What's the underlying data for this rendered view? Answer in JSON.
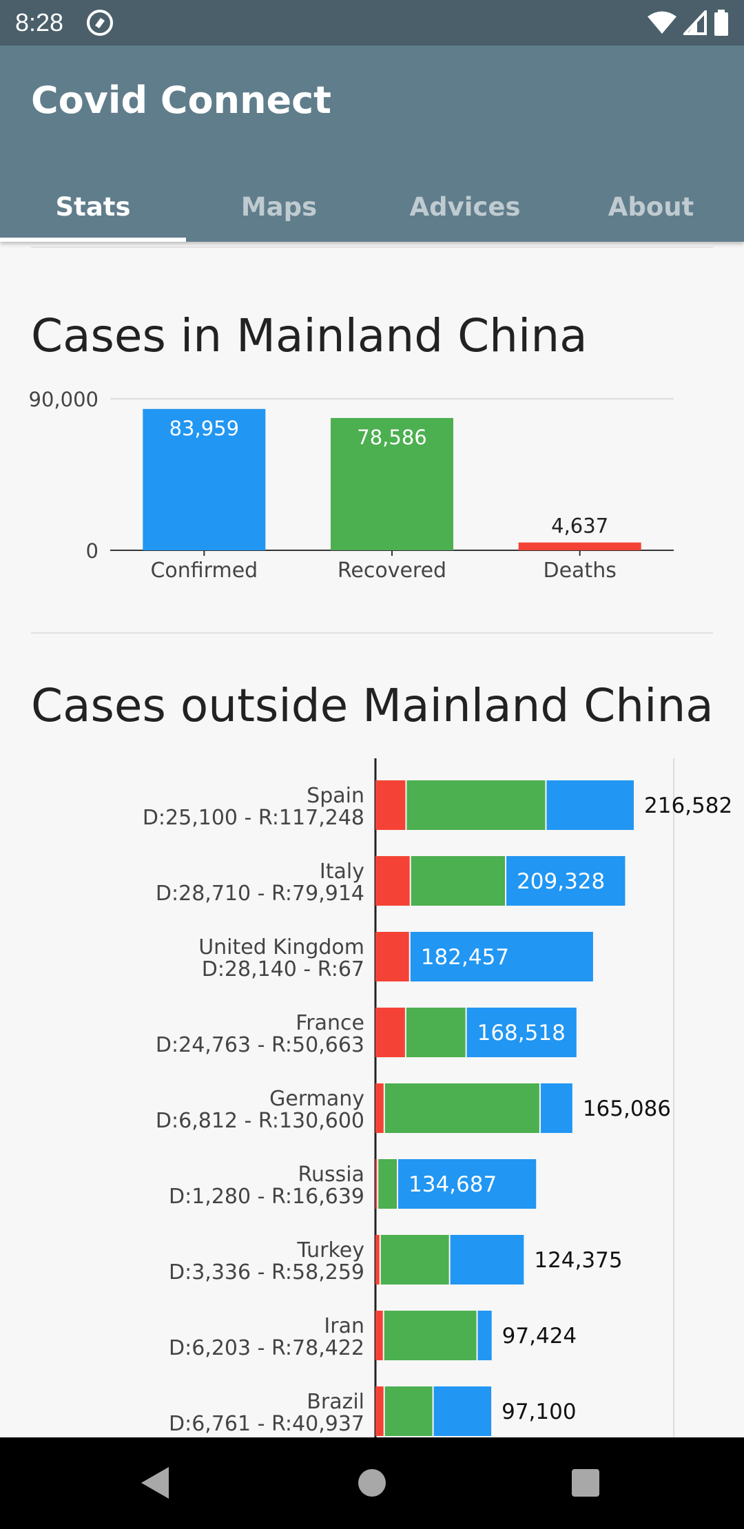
{
  "status_bar": {
    "time": "8:28",
    "icons": [
      "app-notification-icon",
      "wifi-icon",
      "signal-icon",
      "battery-icon"
    ]
  },
  "app": {
    "title": "Covid Connect"
  },
  "tabs": [
    {
      "label": "Stats",
      "active": true
    },
    {
      "label": "Maps",
      "active": false
    },
    {
      "label": "Advices",
      "active": false
    },
    {
      "label": "About",
      "active": false
    }
  ],
  "sections": {
    "china": {
      "title": "Cases in Mainland China"
    },
    "outside": {
      "title": "Cases outside Mainland China"
    }
  },
  "colors": {
    "confirmed": "#2196f3",
    "recovered": "#4caf50",
    "deaths": "#f44336",
    "appbar": "#607d8b"
  },
  "chart_data": [
    {
      "type": "bar",
      "categories": [
        "Confirmed",
        "Recovered",
        "Deaths"
      ],
      "values": [
        83959,
        78586,
        4637
      ],
      "value_labels": [
        "83,959",
        "78,586",
        "4,637"
      ],
      "ylim": [
        0,
        90000
      ],
      "ytick_labels": [
        "0",
        "90,000"
      ],
      "colors": [
        "#2196f3",
        "#4caf50",
        "#f44336"
      ]
    },
    {
      "type": "bar",
      "orientation": "horizontal",
      "stacked": true,
      "countries": [
        {
          "name": "Spain",
          "detail": "D:25,100 - R:117,248",
          "deaths": 25100,
          "recovered": 117248,
          "confirmed": 216582,
          "total_label": "216,582"
        },
        {
          "name": "Italy",
          "detail": "D:28,710 - R:79,914",
          "deaths": 28710,
          "recovered": 79914,
          "confirmed": 209328,
          "total_label": "209,328"
        },
        {
          "name": "United Kingdom",
          "detail": "D:28,140 - R:67",
          "deaths": 28140,
          "recovered": 67,
          "confirmed": 182457,
          "total_label": "182,457"
        },
        {
          "name": "France",
          "detail": "D:24,763 - R:50,663",
          "deaths": 24763,
          "recovered": 50663,
          "confirmed": 168518,
          "total_label": "168,518"
        },
        {
          "name": "Germany",
          "detail": "D:6,812 - R:130,600",
          "deaths": 6812,
          "recovered": 130600,
          "confirmed": 165086,
          "total_label": "165,086"
        },
        {
          "name": "Russia",
          "detail": "D:1,280 - R:16,639",
          "deaths": 1280,
          "recovered": 16639,
          "confirmed": 134687,
          "total_label": "134,687"
        },
        {
          "name": "Turkey",
          "detail": "D:3,336 - R:58,259",
          "deaths": 3336,
          "recovered": 58259,
          "confirmed": 124375,
          "total_label": "124,375"
        },
        {
          "name": "Iran",
          "detail": "D:6,203 - R:78,422",
          "deaths": 6203,
          "recovered": 78422,
          "confirmed": 97424,
          "total_label": "97,424"
        },
        {
          "name": "Brazil",
          "detail": "D:6,761 - R:40,937",
          "deaths": 6761,
          "recovered": 40937,
          "confirmed": 97100,
          "total_label": "97,100"
        }
      ]
    }
  ]
}
